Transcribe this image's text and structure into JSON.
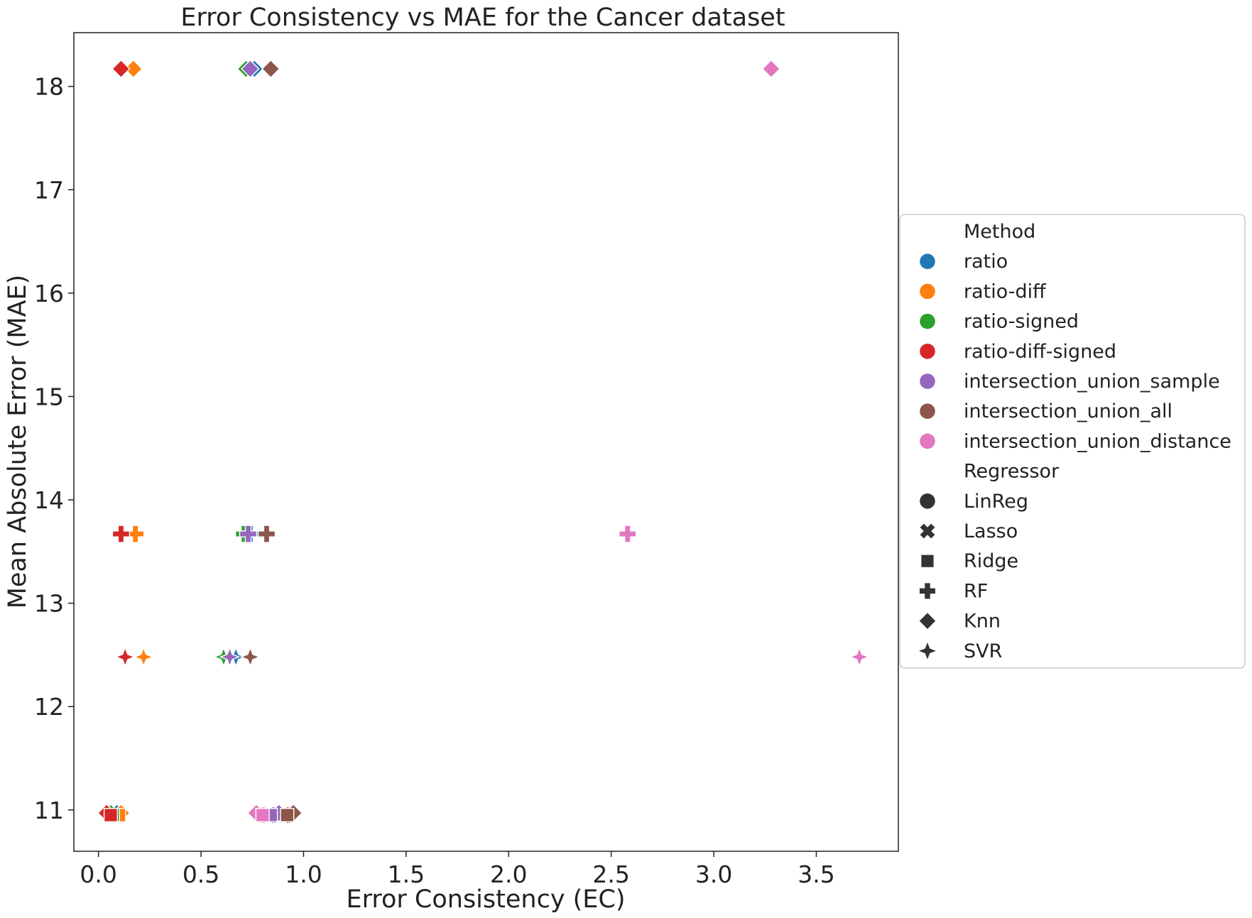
{
  "chart_data": {
    "type": "scatter",
    "title": "Error Consistency vs MAE for the Cancer dataset",
    "xlabel": "Error Consistency (EC)",
    "ylabel": "Mean Absolute Error (MAE)",
    "xlim": [
      -0.12,
      3.9
    ],
    "ylim": [
      10.6,
      18.52
    ],
    "x_ticks": [
      "0.0",
      "0.5",
      "1.0",
      "1.5",
      "2.0",
      "2.5",
      "3.0",
      "3.5"
    ],
    "y_ticks": [
      "11",
      "12",
      "13",
      "14",
      "15",
      "16",
      "17",
      "18"
    ],
    "grid": false,
    "legend": {
      "placement": "right",
      "method_title": "Method",
      "regressor_title": "Regressor",
      "methods": [
        {
          "name": "ratio",
          "color": "#1f77b4"
        },
        {
          "name": "ratio-diff",
          "color": "#ff7f0e"
        },
        {
          "name": "ratio-signed",
          "color": "#2ca02c"
        },
        {
          "name": "ratio-diff-signed",
          "color": "#d62728"
        },
        {
          "name": "intersection_union_sample",
          "color": "#9467bd"
        },
        {
          "name": "intersection_union_all",
          "color": "#8c564b"
        },
        {
          "name": "intersection_union_distance",
          "color": "#e377c2"
        }
      ],
      "regressors": [
        {
          "name": "LinReg",
          "marker": "circle"
        },
        {
          "name": "Lasso",
          "marker": "x"
        },
        {
          "name": "Ridge",
          "marker": "square"
        },
        {
          "name": "RF",
          "marker": "plus"
        },
        {
          "name": "Knn",
          "marker": "diamond"
        },
        {
          "name": "SVR",
          "marker": "star4"
        }
      ]
    },
    "points": [
      {
        "method": "ratio",
        "regressor": "LinReg",
        "x": 0.08,
        "y": 10.95
      },
      {
        "method": "ratio-diff",
        "regressor": "LinReg",
        "x": 0.1,
        "y": 10.95
      },
      {
        "method": "ratio-signed",
        "regressor": "LinReg",
        "x": 0.07,
        "y": 10.95
      },
      {
        "method": "ratio-diff-signed",
        "regressor": "LinReg",
        "x": 0.06,
        "y": 10.95
      },
      {
        "method": "intersection_union_sample",
        "regressor": "LinReg",
        "x": 0.85,
        "y": 10.95
      },
      {
        "method": "intersection_union_all",
        "regressor": "LinReg",
        "x": 0.92,
        "y": 10.95
      },
      {
        "method": "intersection_union_distance",
        "regressor": "LinReg",
        "x": 0.8,
        "y": 10.95
      },
      {
        "method": "ratio",
        "regressor": "Lasso",
        "x": 0.08,
        "y": 10.95
      },
      {
        "method": "ratio-diff",
        "regressor": "Lasso",
        "x": 0.1,
        "y": 10.95
      },
      {
        "method": "ratio-signed",
        "regressor": "Lasso",
        "x": 0.07,
        "y": 10.95
      },
      {
        "method": "ratio-diff-signed",
        "regressor": "Lasso",
        "x": 0.06,
        "y": 10.95
      },
      {
        "method": "intersection_union_sample",
        "regressor": "Lasso",
        "x": 0.86,
        "y": 10.95
      },
      {
        "method": "intersection_union_all",
        "regressor": "Lasso",
        "x": 0.93,
        "y": 10.95
      },
      {
        "method": "intersection_union_distance",
        "regressor": "Lasso",
        "x": 0.81,
        "y": 10.95
      },
      {
        "method": "ratio",
        "regressor": "Knn",
        "x": 0.09,
        "y": 10.97
      },
      {
        "method": "ratio-diff",
        "regressor": "Knn",
        "x": 0.11,
        "y": 10.97
      },
      {
        "method": "ratio-signed",
        "regressor": "Knn",
        "x": 0.06,
        "y": 10.97
      },
      {
        "method": "ratio-diff-signed",
        "regressor": "Knn",
        "x": 0.04,
        "y": 10.97
      },
      {
        "method": "intersection_union_sample",
        "regressor": "Knn",
        "x": 0.88,
        "y": 10.97
      },
      {
        "method": "intersection_union_all",
        "regressor": "Knn",
        "x": 0.95,
        "y": 10.97
      },
      {
        "method": "intersection_union_distance",
        "regressor": "Knn",
        "x": 0.77,
        "y": 10.97
      },
      {
        "method": "ratio",
        "regressor": "Ridge",
        "x": 0.09,
        "y": 10.95
      },
      {
        "method": "ratio-diff",
        "regressor": "Ridge",
        "x": 0.1,
        "y": 10.95
      },
      {
        "method": "ratio-signed",
        "regressor": "Ridge",
        "x": 0.07,
        "y": 10.95
      },
      {
        "method": "ratio-diff-signed",
        "regressor": "Ridge",
        "x": 0.06,
        "y": 10.95
      },
      {
        "method": "intersection_union_sample",
        "regressor": "Ridge",
        "x": 0.84,
        "y": 10.95
      },
      {
        "method": "intersection_union_all",
        "regressor": "Ridge",
        "x": 0.92,
        "y": 10.95
      },
      {
        "method": "intersection_union_distance",
        "regressor": "Ridge",
        "x": 0.8,
        "y": 10.95
      },
      {
        "method": "ratio",
        "regressor": "RF",
        "x": 0.74,
        "y": 13.67
      },
      {
        "method": "ratio-signed",
        "regressor": "RF",
        "x": 0.71,
        "y": 13.67
      },
      {
        "method": "intersection_union_sample",
        "regressor": "RF",
        "x": 0.73,
        "y": 13.67
      },
      {
        "method": "ratio-diff",
        "regressor": "RF",
        "x": 0.18,
        "y": 13.67
      },
      {
        "method": "ratio-diff-signed",
        "regressor": "RF",
        "x": 0.11,
        "y": 13.67
      },
      {
        "method": "intersection_union_all",
        "regressor": "RF",
        "x": 0.82,
        "y": 13.67
      },
      {
        "method": "intersection_union_distance",
        "regressor": "RF",
        "x": 2.58,
        "y": 13.67
      },
      {
        "method": "ratio",
        "regressor": "Knn",
        "x": 0.76,
        "y": 18.17
      },
      {
        "method": "ratio-signed",
        "regressor": "Knn",
        "x": 0.72,
        "y": 18.17
      },
      {
        "method": "intersection_union_sample",
        "regressor": "Knn",
        "x": 0.74,
        "y": 18.17
      },
      {
        "method": "ratio-diff",
        "regressor": "Knn",
        "x": 0.17,
        "y": 18.17
      },
      {
        "method": "ratio-diff-signed",
        "regressor": "Knn",
        "x": 0.11,
        "y": 18.17
      },
      {
        "method": "intersection_union_all",
        "regressor": "Knn",
        "x": 0.84,
        "y": 18.17
      },
      {
        "method": "intersection_union_distance",
        "regressor": "Knn",
        "x": 3.28,
        "y": 18.17
      },
      {
        "method": "ratio",
        "regressor": "SVR",
        "x": 0.67,
        "y": 12.48
      },
      {
        "method": "ratio-signed",
        "regressor": "SVR",
        "x": 0.61,
        "y": 12.48
      },
      {
        "method": "intersection_union_sample",
        "regressor": "SVR",
        "x": 0.64,
        "y": 12.48
      },
      {
        "method": "ratio-diff",
        "regressor": "SVR",
        "x": 0.22,
        "y": 12.48
      },
      {
        "method": "ratio-diff-signed",
        "regressor": "SVR",
        "x": 0.13,
        "y": 12.48
      },
      {
        "method": "intersection_union_all",
        "regressor": "SVR",
        "x": 0.74,
        "y": 12.48
      },
      {
        "method": "intersection_union_distance",
        "regressor": "SVR",
        "x": 3.71,
        "y": 12.48
      }
    ]
  }
}
